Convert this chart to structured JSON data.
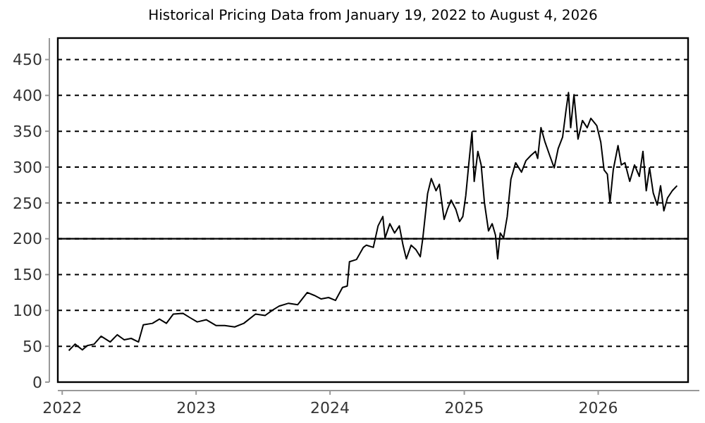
{
  "chart_data": {
    "type": "line",
    "title": "Historical Pricing Data from January 19, 2022 to August 4, 2026",
    "xlim": [
      "2021-12-20",
      "2026-09-03"
    ],
    "xticks": [
      "2022",
      "2023",
      "2024",
      "2025",
      "2026"
    ],
    "ylim": [
      0,
      480
    ],
    "yticks": [
      0,
      50,
      100,
      150,
      200,
      250,
      300,
      350,
      400,
      450
    ],
    "grid": "y",
    "line_style": "solid",
    "marker": "none",
    "ref_lines": [
      {
        "axis": "y",
        "value": 200,
        "color": "#000000",
        "line_style": "solid"
      }
    ],
    "series": [
      {
        "color": "#000000",
        "x": [
          "2022-01-19",
          "2022-02-05",
          "2022-02-25",
          "2022-03-10",
          "2022-03-29",
          "2022-04-17",
          "2022-05-12",
          "2022-05-31",
          "2022-06-19",
          "2022-07-08",
          "2022-07-28",
          "2022-08-10",
          "2022-09-04",
          "2022-09-23",
          "2022-10-12",
          "2022-10-31",
          "2022-11-26",
          "2022-12-15",
          "2023-01-04",
          "2023-01-29",
          "2023-02-24",
          "2023-03-20",
          "2023-04-16",
          "2023-05-11",
          "2023-06-12",
          "2023-07-08",
          "2023-07-27",
          "2023-08-15",
          "2023-09-10",
          "2023-10-05",
          "2023-10-31",
          "2023-11-19",
          "2023-12-08",
          "2023-12-28",
          "2024-01-16",
          "2024-02-04",
          "2024-02-17",
          "2024-02-23",
          "2024-03-13",
          "2024-04-01",
          "2024-04-09",
          "2024-04-28",
          "2024-05-11",
          "2024-05-24",
          "2024-05-30",
          "2024-06-12",
          "2024-06-25",
          "2024-07-08",
          "2024-07-18",
          "2024-07-27",
          "2024-08-09",
          "2024-08-22",
          "2024-09-03",
          "2024-09-10",
          "2024-09-23",
          "2024-10-03",
          "2024-10-16",
          "2024-10-25",
          "2024-11-07",
          "2024-11-16",
          "2024-11-26",
          "2024-12-09",
          "2024-12-19",
          "2024-12-28",
          "2025-01-05",
          "2025-01-13",
          "2025-01-22",
          "2025-01-28",
          "2025-02-07",
          "2025-02-16",
          "2025-02-25",
          "2025-03-08",
          "2025-03-18",
          "2025-03-27",
          "2025-04-02",
          "2025-04-09",
          "2025-04-18",
          "2025-04-28",
          "2025-05-08",
          "2025-05-21",
          "2025-06-06",
          "2025-06-18",
          "2025-07-01",
          "2025-07-14",
          "2025-07-20",
          "2025-07-29",
          "2025-08-09",
          "2025-08-22",
          "2025-09-03",
          "2025-09-14",
          "2025-09-26",
          "2025-10-05",
          "2025-10-12",
          "2025-10-18",
          "2025-10-27",
          "2025-11-07",
          "2025-11-19",
          "2025-12-02",
          "2025-12-12",
          "2025-12-28",
          "2026-01-08",
          "2026-01-17",
          "2026-01-26",
          "2026-02-02",
          "2026-02-11",
          "2026-02-24",
          "2026-03-05",
          "2026-03-15",
          "2026-03-28",
          "2026-04-10",
          "2026-04-23",
          "2026-05-03",
          "2026-05-12",
          "2026-05-21",
          "2026-05-31",
          "2026-06-11",
          "2026-06-20",
          "2026-06-29",
          "2026-07-09",
          "2026-07-22",
          "2026-08-04"
        ],
        "values": [
          44,
          53,
          45,
          51,
          53,
          64,
          56,
          66,
          59,
          61,
          56,
          80,
          82,
          88,
          82,
          95,
          96,
          90,
          84,
          87,
          79,
          79,
          77,
          82,
          95,
          93,
          100,
          106,
          110,
          108,
          125,
          121,
          116,
          118,
          114,
          132,
          134,
          168,
          171,
          188,
          191,
          188,
          218,
          231,
          201,
          221,
          208,
          218,
          191,
          172,
          191,
          185,
          175,
          201,
          263,
          284,
          267,
          276,
          227,
          241,
          254,
          241,
          224,
          231,
          260,
          303,
          349,
          280,
          322,
          303,
          250,
          211,
          221,
          205,
          172,
          208,
          201,
          231,
          283,
          306,
          293,
          309,
          316,
          322,
          312,
          355,
          335,
          316,
          299,
          326,
          342,
          378,
          404,
          355,
          401,
          339,
          365,
          355,
          368,
          358,
          335,
          296,
          290,
          250,
          296,
          330,
          303,
          306,
          280,
          303,
          287,
          322,
          267,
          299,
          264,
          247,
          274,
          239,
          257,
          267,
          274
        ]
      }
    ]
  }
}
